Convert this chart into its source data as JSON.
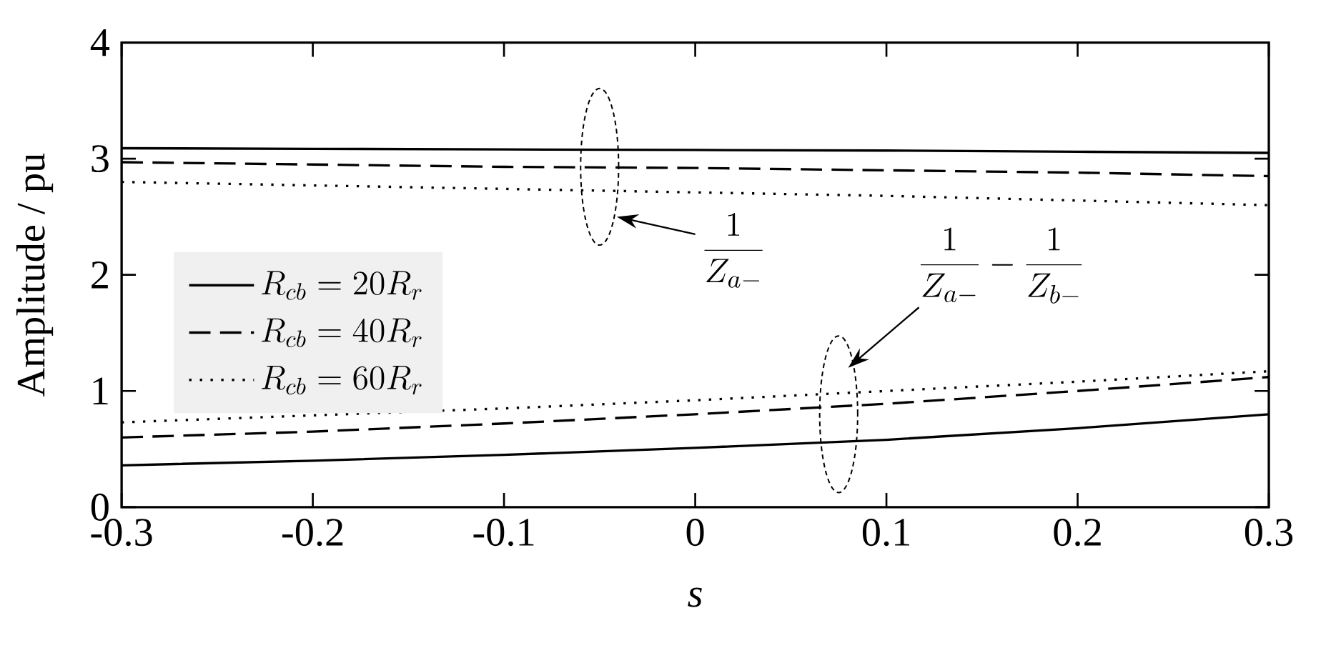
{
  "chart_data": {
    "type": "line",
    "xlabel": "*s*",
    "ylabel": "Amplitude / pu",
    "x": [
      -0.3,
      -0.2,
      -0.1,
      0,
      0.1,
      0.2,
      0.3
    ],
    "series": [
      {
        "name": "R_{cb}=20R_r",
        "color": "#000000",
        "line_style": "solid",
        "values": [
          3.09,
          3.085,
          3.08,
          3.075,
          3.07,
          3.06,
          3.05
        ]
      },
      {
        "name": "R_{cb}=40R_r",
        "color": "#000000",
        "line_style": "dashed",
        "values": [
          2.97,
          2.95,
          2.93,
          2.92,
          2.9,
          2.88,
          2.85
        ]
      },
      {
        "name": "R_{cb}=60R_r",
        "color": "#000000",
        "line_style": "dotted",
        "values": [
          2.8,
          2.77,
          2.74,
          2.71,
          2.68,
          2.64,
          2.6
        ]
      },
      {
        "color": "#000000",
        "line_style": "solid",
        "values": [
          0.36,
          0.4,
          0.45,
          0.51,
          0.58,
          0.68,
          0.8
        ]
      },
      {
        "color": "#000000",
        "line_style": "dashed",
        "values": [
          0.6,
          0.65,
          0.72,
          0.8,
          0.89,
          1.0,
          1.12
        ]
      },
      {
        "color": "#000000",
        "line_style": "dotted",
        "values": [
          0.73,
          0.79,
          0.85,
          0.92,
          1.0,
          1.08,
          1.17
        ]
      }
    ],
    "annotations": [
      "\\frac{1}{Z_{a-}}",
      "\\frac{1}{Z_{a-}}-\\frac{1}{Z_{b-}}"
    ],
    "xlim": [
      -0.3,
      0.3
    ],
    "ylim": [
      0,
      4
    ],
    "xticks": [
      -0.3,
      -0.2,
      -0.1,
      0,
      0.1,
      0.2,
      0.3
    ],
    "yticks": [
      0,
      1,
      2,
      3,
      4
    ],
    "grid": false,
    "legend": "left",
    "marker": "none"
  }
}
